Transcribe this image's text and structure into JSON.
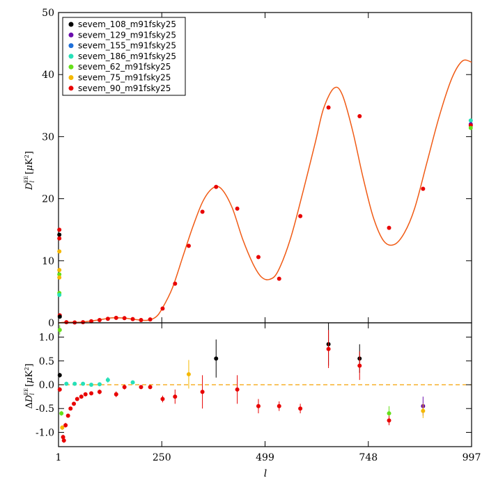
{
  "chart_data": [
    {
      "type": "scatter",
      "panel": "top",
      "ylabel": "D_l^EE [μK²]",
      "xlabel": "",
      "xlim": [
        1,
        997
      ],
      "ylim": [
        0,
        50
      ],
      "xticks": [
        1,
        250,
        499,
        748,
        997
      ],
      "yticks": [
        0,
        10,
        20,
        30,
        40,
        50
      ],
      "legend": {
        "placement": "top-left",
        "entries": [
          {
            "name": "sevem_108_m91fsky25",
            "color": "#000000"
          },
          {
            "name": "sevem_129_m91fsky25",
            "color": "#6a0dad"
          },
          {
            "name": "sevem_155_m91fsky25",
            "color": "#1e6fd9"
          },
          {
            "name": "sevem_186_m91fsky25",
            "color": "#26e0b8"
          },
          {
            "name": "sevem_62_m91fsky25",
            "color": "#66e01a"
          },
          {
            "name": "sevem_75_m91fsky25",
            "color": "#f5b800"
          },
          {
            "name": "sevem_90_m91fsky25",
            "color": "#e80000"
          }
        ]
      },
      "model_curve": {
        "color": "#f05a14",
        "points": [
          [
            1,
            0
          ],
          [
            20,
            0.1
          ],
          [
            50,
            0.1
          ],
          [
            80,
            0.3
          ],
          [
            110,
            0.6
          ],
          [
            130,
            0.8
          ],
          [
            160,
            0.75
          ],
          [
            190,
            0.5
          ],
          [
            215,
            0.4
          ],
          [
            235,
            0.9
          ],
          [
            250,
            2.2
          ],
          [
            275,
            5.5
          ],
          [
            300,
            10.5
          ],
          [
            325,
            15.5
          ],
          [
            350,
            19.7
          ],
          [
            375,
            21.8
          ],
          [
            395,
            21.5
          ],
          [
            420,
            18.5
          ],
          [
            445,
            13.5
          ],
          [
            470,
            9.5
          ],
          [
            490,
            7.4
          ],
          [
            510,
            7.0
          ],
          [
            530,
            8.3
          ],
          [
            560,
            13.5
          ],
          [
            590,
            21
          ],
          [
            620,
            29
          ],
          [
            640,
            34.5
          ],
          [
            665,
            37.8
          ],
          [
            685,
            36.8
          ],
          [
            710,
            31
          ],
          [
            735,
            23.5
          ],
          [
            760,
            17
          ],
          [
            785,
            13.2
          ],
          [
            810,
            12.6
          ],
          [
            835,
            14.5
          ],
          [
            860,
            18.5
          ],
          [
            890,
            26
          ],
          [
            920,
            33.5
          ],
          [
            950,
            39.5
          ],
          [
            975,
            42.2
          ],
          [
            997,
            42.0
          ]
        ]
      },
      "points": [
        {
          "x": 3,
          "y": 15.0,
          "color": "#e80000"
        },
        {
          "x": 3,
          "y": 14.2,
          "color": "#000000"
        },
        {
          "x": 3,
          "y": 13.6,
          "color": "#e80000"
        },
        {
          "x": 3,
          "y": 11.5,
          "color": "#f5b800"
        },
        {
          "x": 3,
          "y": 8.5,
          "color": "#f5b800"
        },
        {
          "x": 3,
          "y": 7.8,
          "color": "#66e01a"
        },
        {
          "x": 3,
          "y": 7.3,
          "color": "#f5b800"
        },
        {
          "x": 3,
          "y": 4.8,
          "color": "#66e01a"
        },
        {
          "x": 3,
          "y": 4.5,
          "color": "#26e0b8"
        },
        {
          "x": 4,
          "y": 1.2,
          "color": "#e80000"
        },
        {
          "x": 4,
          "y": 1.0,
          "color": "#000000"
        },
        {
          "x": 20,
          "y": 0.1,
          "color": "#e80000"
        },
        {
          "x": 40,
          "y": 0.05,
          "color": "#e80000"
        },
        {
          "x": 60,
          "y": 0.1,
          "color": "#e80000"
        },
        {
          "x": 80,
          "y": 0.25,
          "color": "#e80000"
        },
        {
          "x": 100,
          "y": 0.45,
          "color": "#e80000"
        },
        {
          "x": 120,
          "y": 0.65,
          "color": "#e80000"
        },
        {
          "x": 140,
          "y": 0.8,
          "color": "#e80000"
        },
        {
          "x": 160,
          "y": 0.75,
          "color": "#e80000"
        },
        {
          "x": 180,
          "y": 0.6,
          "color": "#e80000"
        },
        {
          "x": 200,
          "y": 0.45,
          "color": "#e80000"
        },
        {
          "x": 222,
          "y": 0.55,
          "color": "#e80000"
        },
        {
          "x": 252,
          "y": 2.3,
          "color": "#e80000"
        },
        {
          "x": 282,
          "y": 6.3,
          "color": "#e80000"
        },
        {
          "x": 315,
          "y": 12.4,
          "color": "#e80000"
        },
        {
          "x": 348,
          "y": 17.9,
          "color": "#e80000"
        },
        {
          "x": 381,
          "y": 21.9,
          "color": "#e80000"
        },
        {
          "x": 432,
          "y": 18.4,
          "color": "#e80000"
        },
        {
          "x": 483,
          "y": 10.6,
          "color": "#e80000"
        },
        {
          "x": 533,
          "y": 7.1,
          "color": "#e80000"
        },
        {
          "x": 584,
          "y": 17.2,
          "color": "#e80000"
        },
        {
          "x": 652,
          "y": 34.7,
          "color": "#e80000"
        },
        {
          "x": 727,
          "y": 33.3,
          "color": "#e80000"
        },
        {
          "x": 798,
          "y": 15.3,
          "color": "#e80000"
        },
        {
          "x": 880,
          "y": 21.6,
          "color": "#e80000"
        },
        {
          "x": 995,
          "y": 32.6,
          "color": "#26e0b8"
        },
        {
          "x": 995,
          "y": 32.0,
          "color": "#6a0dad"
        },
        {
          "x": 995,
          "y": 31.8,
          "color": "#e80000"
        },
        {
          "x": 995,
          "y": 31.4,
          "color": "#66e01a"
        }
      ]
    },
    {
      "type": "scatter",
      "panel": "bottom",
      "ylabel": "ΔD_l^EE [μK²]",
      "xlabel": "l",
      "xlim": [
        1,
        997
      ],
      "ylim": [
        -1.3,
        1.3
      ],
      "xticks": [
        1,
        250,
        499,
        748,
        997
      ],
      "yticks": [
        -1.0,
        -0.5,
        0.0,
        0.5,
        1.0
      ],
      "zero_line_color": "#f5a000",
      "points": [
        {
          "x": 4,
          "y": 1.15,
          "color": "#66e01a",
          "err": 0.1
        },
        {
          "x": 4,
          "y": 0.2,
          "color": "#000000",
          "err": 0.05
        },
        {
          "x": 4,
          "y": -0.1,
          "color": "#e80000",
          "err": 0.05
        },
        {
          "x": 8,
          "y": -0.6,
          "color": "#66e01a",
          "err": 0.05
        },
        {
          "x": 10,
          "y": -0.9,
          "color": "#f5b800",
          "err": 0.05
        },
        {
          "x": 12,
          "y": -1.1,
          "color": "#e80000",
          "err": 0.05
        },
        {
          "x": 14,
          "y": -1.17,
          "color": "#e80000",
          "err": 0.05
        },
        {
          "x": 18,
          "y": -0.85,
          "color": "#e80000",
          "err": 0.05
        },
        {
          "x": 24,
          "y": -0.65,
          "color": "#e80000",
          "err": 0.04
        },
        {
          "x": 30,
          "y": -0.5,
          "color": "#e80000",
          "err": 0.04
        },
        {
          "x": 38,
          "y": -0.4,
          "color": "#e80000",
          "err": 0.04
        },
        {
          "x": 46,
          "y": -0.3,
          "color": "#e80000",
          "err": 0.04
        },
        {
          "x": 56,
          "y": -0.25,
          "color": "#e80000",
          "err": 0.04
        },
        {
          "x": 66,
          "y": -0.2,
          "color": "#e80000",
          "err": 0.04
        },
        {
          "x": 80,
          "y": -0.18,
          "color": "#e80000",
          "err": 0.04
        },
        {
          "x": 100,
          "y": -0.15,
          "color": "#e80000",
          "err": 0.05
        },
        {
          "x": 20,
          "y": 0.02,
          "color": "#26e0b8",
          "err": 0.03
        },
        {
          "x": 40,
          "y": 0.02,
          "color": "#26e0b8",
          "err": 0.03
        },
        {
          "x": 60,
          "y": 0.02,
          "color": "#26e0b8",
          "err": 0.03
        },
        {
          "x": 80,
          "y": 0.0,
          "color": "#26e0b8",
          "err": 0.03
        },
        {
          "x": 100,
          "y": 0.01,
          "color": "#26e0b8",
          "err": 0.03
        },
        {
          "x": 120,
          "y": 0.1,
          "color": "#26e0b8",
          "err": 0.06
        },
        {
          "x": 140,
          "y": -0.2,
          "color": "#e80000",
          "err": 0.06
        },
        {
          "x": 160,
          "y": -0.05,
          "color": "#e80000",
          "err": 0.05
        },
        {
          "x": 180,
          "y": 0.05,
          "color": "#26e0b8",
          "err": 0.04
        },
        {
          "x": 200,
          "y": -0.05,
          "color": "#e80000",
          "err": 0.04
        },
        {
          "x": 222,
          "y": -0.05,
          "color": "#e80000",
          "err": 0.04
        },
        {
          "x": 252,
          "y": -0.3,
          "color": "#e80000",
          "err": 0.07
        },
        {
          "x": 282,
          "y": -0.25,
          "color": "#e80000",
          "err": 0.15
        },
        {
          "x": 315,
          "y": 0.22,
          "color": "#f5b800",
          "err": 0.3
        },
        {
          "x": 348,
          "y": -0.15,
          "color": "#e80000",
          "err": 0.35
        },
        {
          "x": 381,
          "y": 0.55,
          "color": "#000000",
          "err": 0.4
        },
        {
          "x": 432,
          "y": -0.1,
          "color": "#e80000",
          "err": 0.3
        },
        {
          "x": 483,
          "y": -0.45,
          "color": "#e80000",
          "err": 0.15
        },
        {
          "x": 533,
          "y": -0.45,
          "color": "#e80000",
          "err": 0.1
        },
        {
          "x": 584,
          "y": -0.5,
          "color": "#e80000",
          "err": 0.1
        },
        {
          "x": 652,
          "y": 0.85,
          "color": "#000000",
          "err": 0.45
        },
        {
          "x": 652,
          "y": 0.75,
          "color": "#e80000",
          "err": 0.4
        },
        {
          "x": 727,
          "y": 0.55,
          "color": "#000000",
          "err": 0.3
        },
        {
          "x": 727,
          "y": 0.4,
          "color": "#e80000",
          "err": 0.3
        },
        {
          "x": 798,
          "y": -0.6,
          "color": "#66e01a",
          "err": 0.15
        },
        {
          "x": 798,
          "y": -0.75,
          "color": "#e80000",
          "err": 0.1
        },
        {
          "x": 880,
          "y": -0.45,
          "color": "#6a0dad",
          "err": 0.2
        },
        {
          "x": 880,
          "y": -0.55,
          "color": "#f5b800",
          "err": 0.15
        }
      ]
    }
  ]
}
